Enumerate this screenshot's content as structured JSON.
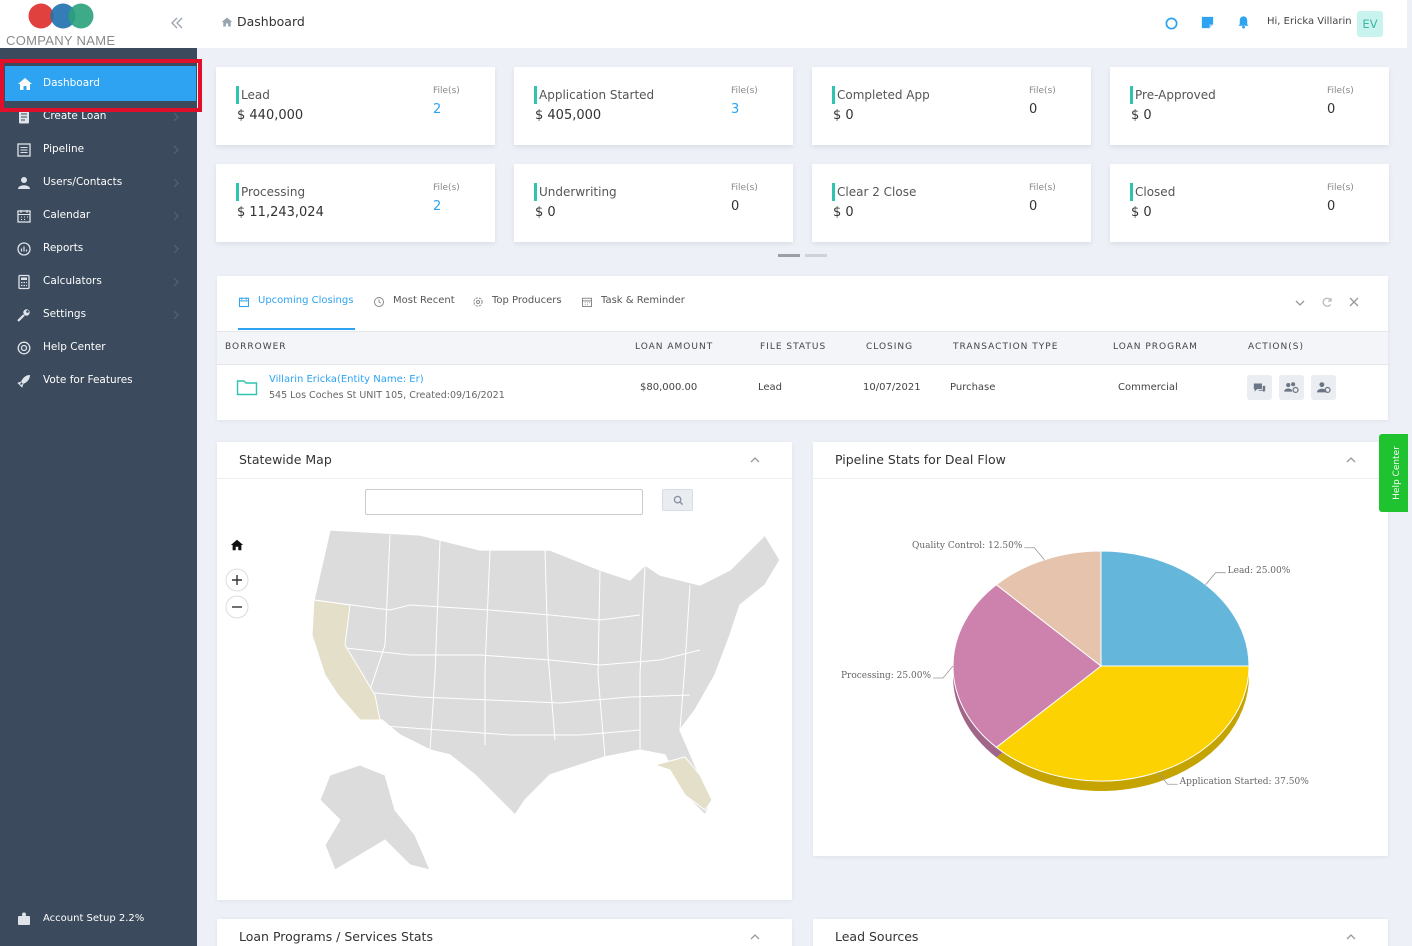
{
  "logo": {
    "company_name": "COMPANY NAME",
    "colors": [
      "#e0413f",
      "#1f6fae",
      "#2aa17b"
    ]
  },
  "sidebar": {
    "items": [
      {
        "label": "Dashboard",
        "icon": "home-icon"
      },
      {
        "label": "Create Loan",
        "icon": "document-icon"
      },
      {
        "label": "Pipeline",
        "icon": "list-icon"
      },
      {
        "label": "Users/Contacts",
        "icon": "users-icon"
      },
      {
        "label": "Calendar",
        "icon": "calendar-icon"
      },
      {
        "label": "Reports",
        "icon": "chart-icon"
      },
      {
        "label": "Calculators",
        "icon": "calculator-icon"
      },
      {
        "label": "Settings",
        "icon": "wrench-icon"
      },
      {
        "label": "Help Center",
        "icon": "lifebuoy-icon"
      },
      {
        "label": "Vote for Features",
        "icon": "rocket-icon"
      }
    ],
    "account_setup": "Account Setup 2.2%",
    "account_setup_progress": 2.2
  },
  "header": {
    "breadcrumb": "Dashboard",
    "user_greeting": "Hi, Ericka Villarin",
    "avatar_initials": "EV"
  },
  "stats": [
    {
      "name": "Lead",
      "amount": "$ 440,000",
      "files_label": "File(s)",
      "files": "2"
    },
    {
      "name": "Application Started",
      "amount": "$ 405,000",
      "files_label": "File(s)",
      "files": "3"
    },
    {
      "name": "Completed App",
      "amount": "$ 0",
      "files_label": "File(s)",
      "files": "0"
    },
    {
      "name": "Pre-Approved",
      "amount": "$ 0",
      "files_label": "File(s)",
      "files": "0"
    },
    {
      "name": "Processing",
      "amount": "$ 11,243,024",
      "files_label": "File(s)",
      "files": "2"
    },
    {
      "name": "Underwriting",
      "amount": "$ 0",
      "files_label": "File(s)",
      "files": "0"
    },
    {
      "name": "Clear 2 Close",
      "amount": "$ 0",
      "files_label": "File(s)",
      "files": "0"
    },
    {
      "name": "Closed",
      "amount": "$ 0",
      "files_label": "File(s)",
      "files": "0"
    }
  ],
  "closings": {
    "tabs": [
      "Upcoming Closings",
      "Most Recent",
      "Top Producers",
      "Task & Reminder"
    ],
    "columns": [
      "BORROWER",
      "LOAN AMOUNT",
      "FILE STATUS",
      "CLOSING",
      "TRANSACTION TYPE",
      "LOAN PROGRAM",
      "ACTION(S)"
    ],
    "rows": [
      {
        "borrower": "Villarin Ericka(Entity Name: Er)",
        "address": "545 Los Coches St UNIT 105, Created:09/16/2021",
        "amount": "$80,000.00",
        "status": "Lead",
        "closing": "10/07/2021",
        "transaction": "Purchase",
        "program": "Commercial"
      }
    ]
  },
  "map_panel": {
    "title": "Statewide Map",
    "search_value": ""
  },
  "pipeline_panel": {
    "title": "Pipeline Stats for Deal Flow"
  },
  "chart_data": {
    "type": "pie",
    "title": "Pipeline Stats for Deal Flow",
    "slices": [
      {
        "label": "Lead: 25.00%",
        "value": 25.0,
        "color": "#64b6db"
      },
      {
        "label": "Application Started: 37.50%",
        "value": 37.5,
        "color": "#fcd202"
      },
      {
        "label": "Processing: 25.00%",
        "value": 25.0,
        "color": "#cd82ad"
      },
      {
        "label": "Quality Control: 12.50%",
        "value": 12.5,
        "color": "#e6c3ac"
      }
    ]
  },
  "bottom_panels": {
    "left_title": "Loan Programs / Services Stats",
    "right_title": "Lead Sources"
  },
  "help_tab": "Help Center"
}
